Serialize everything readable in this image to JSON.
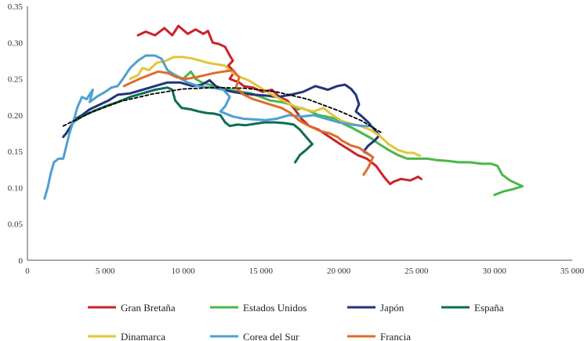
{
  "chart_data": {
    "type": "line",
    "title": "",
    "xlabel": "",
    "ylabel": "",
    "xlim": [
      0,
      35000
    ],
    "ylim": [
      0,
      0.35
    ],
    "x_ticks": [
      0,
      5000,
      10000,
      15000,
      20000,
      25000,
      30000,
      35000
    ],
    "x_tick_labels": [
      "0",
      "5 000",
      "10 000",
      "15 000",
      "20 000",
      "25 000",
      "30 000",
      "35 000"
    ],
    "y_ticks": [
      0,
      0.05,
      0.1,
      0.15,
      0.2,
      0.25,
      0.3,
      0.35
    ],
    "y_tick_labels": [
      "0",
      "0.05",
      "0.10",
      "0.15",
      "0.20",
      "0.25",
      "0.30",
      "0.35"
    ],
    "grid": false,
    "legend_position": "bottom",
    "series": [
      {
        "name": "Gran Bretaña",
        "color": "#cc2229",
        "points": [
          [
            7100,
            0.31
          ],
          [
            7600,
            0.315
          ],
          [
            8200,
            0.31
          ],
          [
            8800,
            0.32
          ],
          [
            9300,
            0.31
          ],
          [
            9700,
            0.323
          ],
          [
            10300,
            0.312
          ],
          [
            10800,
            0.318
          ],
          [
            11300,
            0.312
          ],
          [
            11600,
            0.316
          ],
          [
            11900,
            0.3
          ],
          [
            12300,
            0.298
          ],
          [
            12700,
            0.294
          ],
          [
            13000,
            0.282
          ],
          [
            13200,
            0.275
          ],
          [
            12900,
            0.268
          ],
          [
            13300,
            0.26
          ],
          [
            13000,
            0.25
          ],
          [
            13600,
            0.245
          ],
          [
            13900,
            0.24
          ],
          [
            14500,
            0.238
          ],
          [
            15100,
            0.232
          ],
          [
            15700,
            0.235
          ],
          [
            16200,
            0.225
          ],
          [
            16700,
            0.22
          ],
          [
            17100,
            0.21
          ],
          [
            17600,
            0.195
          ],
          [
            18100,
            0.185
          ],
          [
            18700,
            0.18
          ],
          [
            19400,
            0.17
          ],
          [
            20100,
            0.16
          ],
          [
            20700,
            0.152
          ],
          [
            21200,
            0.145
          ],
          [
            21800,
            0.14
          ],
          [
            22400,
            0.13
          ],
          [
            22900,
            0.115
          ],
          [
            23300,
            0.105
          ],
          [
            23500,
            0.108
          ],
          [
            24000,
            0.112
          ],
          [
            24600,
            0.11
          ],
          [
            25100,
            0.115
          ],
          [
            25300,
            0.112
          ]
        ]
      },
      {
        "name": "Estados Unidos",
        "color": "#4cb648",
        "points": [
          [
            9500,
            0.255
          ],
          [
            10000,
            0.25
          ],
          [
            10500,
            0.26
          ],
          [
            10800,
            0.25
          ],
          [
            11200,
            0.245
          ],
          [
            12000,
            0.24
          ],
          [
            13000,
            0.235
          ],
          [
            13800,
            0.232
          ],
          [
            14400,
            0.23
          ],
          [
            15000,
            0.225
          ],
          [
            15600,
            0.22
          ],
          [
            16300,
            0.218
          ],
          [
            16900,
            0.215
          ],
          [
            17400,
            0.208
          ],
          [
            17600,
            0.21
          ],
          [
            18200,
            0.205
          ],
          [
            18700,
            0.2
          ],
          [
            19200,
            0.198
          ],
          [
            19800,
            0.195
          ],
          [
            20300,
            0.188
          ],
          [
            20900,
            0.182
          ],
          [
            21500,
            0.175
          ],
          [
            22100,
            0.168
          ],
          [
            22600,
            0.16
          ],
          [
            23200,
            0.152
          ],
          [
            23800,
            0.145
          ],
          [
            24400,
            0.14
          ],
          [
            25000,
            0.14
          ],
          [
            25700,
            0.14
          ],
          [
            26300,
            0.138
          ],
          [
            27000,
            0.137
          ],
          [
            27700,
            0.135
          ],
          [
            28400,
            0.135
          ],
          [
            29200,
            0.133
          ],
          [
            29800,
            0.133
          ],
          [
            30200,
            0.13
          ],
          [
            30500,
            0.118
          ],
          [
            31000,
            0.11
          ],
          [
            31500,
            0.105
          ],
          [
            31800,
            0.102
          ],
          [
            31200,
            0.098
          ],
          [
            30600,
            0.095
          ],
          [
            30000,
            0.09
          ]
        ]
      },
      {
        "name": "Japón",
        "color": "#25337a",
        "points": [
          [
            2300,
            0.17
          ],
          [
            2500,
            0.175
          ],
          [
            2800,
            0.185
          ],
          [
            3100,
            0.195
          ],
          [
            3500,
            0.2
          ],
          [
            4000,
            0.208
          ],
          [
            4600,
            0.214
          ],
          [
            5200,
            0.22
          ],
          [
            5800,
            0.228
          ],
          [
            6600,
            0.23
          ],
          [
            7400,
            0.235
          ],
          [
            8200,
            0.24
          ],
          [
            9000,
            0.245
          ],
          [
            9800,
            0.245
          ],
          [
            10600,
            0.24
          ],
          [
            11200,
            0.242
          ],
          [
            11700,
            0.248
          ],
          [
            12100,
            0.24
          ],
          [
            12600,
            0.235
          ],
          [
            13200,
            0.232
          ],
          [
            13800,
            0.23
          ],
          [
            14600,
            0.228
          ],
          [
            15300,
            0.227
          ],
          [
            16100,
            0.225
          ],
          [
            16900,
            0.228
          ],
          [
            17700,
            0.232
          ],
          [
            18500,
            0.24
          ],
          [
            19300,
            0.235
          ],
          [
            19900,
            0.24
          ],
          [
            20400,
            0.242
          ],
          [
            20800,
            0.236
          ],
          [
            21100,
            0.228
          ],
          [
            21300,
            0.215
          ],
          [
            21100,
            0.205
          ],
          [
            21500,
            0.198
          ],
          [
            21900,
            0.19
          ],
          [
            22300,
            0.18
          ],
          [
            22600,
            0.172
          ],
          [
            22300,
            0.165
          ],
          [
            21900,
            0.158
          ],
          [
            21600,
            0.15
          ],
          [
            22000,
            0.145
          ]
        ]
      },
      {
        "name": "España",
        "color": "#0c6e55",
        "points": [
          [
            2900,
            0.19
          ],
          [
            3500,
            0.198
          ],
          [
            4200,
            0.205
          ],
          [
            5000,
            0.212
          ],
          [
            5800,
            0.218
          ],
          [
            6600,
            0.225
          ],
          [
            7400,
            0.23
          ],
          [
            8200,
            0.235
          ],
          [
            9000,
            0.238
          ],
          [
            9300,
            0.235
          ],
          [
            9500,
            0.22
          ],
          [
            9900,
            0.21
          ],
          [
            10500,
            0.208
          ],
          [
            11000,
            0.205
          ],
          [
            11500,
            0.203
          ],
          [
            12000,
            0.202
          ],
          [
            12400,
            0.2
          ],
          [
            12700,
            0.19
          ],
          [
            13000,
            0.185
          ],
          [
            13500,
            0.187
          ],
          [
            14000,
            0.186
          ],
          [
            14600,
            0.188
          ],
          [
            15200,
            0.19
          ],
          [
            15900,
            0.19
          ],
          [
            16500,
            0.189
          ],
          [
            17100,
            0.187
          ],
          [
            17500,
            0.18
          ],
          [
            17900,
            0.17
          ],
          [
            18300,
            0.16
          ],
          [
            17900,
            0.152
          ],
          [
            17500,
            0.145
          ],
          [
            17200,
            0.135
          ]
        ]
      },
      {
        "name": "Dinamarca",
        "color": "#e3c53a",
        "points": [
          [
            6600,
            0.25
          ],
          [
            7100,
            0.255
          ],
          [
            7400,
            0.265
          ],
          [
            7800,
            0.262
          ],
          [
            8300,
            0.272
          ],
          [
            8900,
            0.275
          ],
          [
            9400,
            0.28
          ],
          [
            10000,
            0.28
          ],
          [
            10600,
            0.278
          ],
          [
            11100,
            0.275
          ],
          [
            11600,
            0.272
          ],
          [
            12200,
            0.27
          ],
          [
            12700,
            0.268
          ],
          [
            13200,
            0.258
          ],
          [
            13700,
            0.252
          ],
          [
            14200,
            0.248
          ],
          [
            14800,
            0.24
          ],
          [
            15400,
            0.232
          ],
          [
            16000,
            0.225
          ],
          [
            16600,
            0.218
          ],
          [
            17200,
            0.212
          ],
          [
            17800,
            0.208
          ],
          [
            18400,
            0.205
          ],
          [
            19000,
            0.21
          ],
          [
            19600,
            0.2
          ],
          [
            20200,
            0.192
          ],
          [
            20800,
            0.188
          ],
          [
            21400,
            0.185
          ],
          [
            22000,
            0.18
          ],
          [
            22600,
            0.172
          ],
          [
            23200,
            0.16
          ],
          [
            23800,
            0.152
          ],
          [
            24400,
            0.148
          ],
          [
            24800,
            0.148
          ],
          [
            25200,
            0.144
          ]
        ]
      },
      {
        "name": "Corea del Sur",
        "color": "#4fa0cf",
        "points": [
          [
            1100,
            0.085
          ],
          [
            1300,
            0.1
          ],
          [
            1500,
            0.12
          ],
          [
            1700,
            0.135
          ],
          [
            2000,
            0.14
          ],
          [
            2300,
            0.14
          ],
          [
            2700,
            0.175
          ],
          [
            3000,
            0.195
          ],
          [
            3200,
            0.21
          ],
          [
            3500,
            0.225
          ],
          [
            3800,
            0.222
          ],
          [
            4200,
            0.235
          ],
          [
            4000,
            0.218
          ],
          [
            4500,
            0.226
          ],
          [
            5000,
            0.232
          ],
          [
            5400,
            0.238
          ],
          [
            5800,
            0.24
          ],
          [
            6200,
            0.252
          ],
          [
            6600,
            0.265
          ],
          [
            7100,
            0.275
          ],
          [
            7600,
            0.282
          ],
          [
            8200,
            0.282
          ],
          [
            8600,
            0.278
          ],
          [
            9000,
            0.262
          ],
          [
            9700,
            0.252
          ],
          [
            10300,
            0.245
          ],
          [
            11000,
            0.24
          ],
          [
            11800,
            0.238
          ],
          [
            12600,
            0.235
          ],
          [
            13000,
            0.225
          ],
          [
            12700,
            0.212
          ],
          [
            12400,
            0.205
          ],
          [
            13200,
            0.198
          ],
          [
            13900,
            0.195
          ],
          [
            14600,
            0.194
          ],
          [
            15300,
            0.193
          ],
          [
            16000,
            0.195
          ],
          [
            16800,
            0.2
          ],
          [
            17600,
            0.198
          ],
          [
            18400,
            0.2
          ],
          [
            19200,
            0.195
          ],
          [
            20000,
            0.19
          ],
          [
            20800,
            0.187
          ],
          [
            21600,
            0.185
          ],
          [
            22100,
            0.185
          ]
        ]
      },
      {
        "name": "Francia",
        "color": "#e06b2c",
        "points": [
          [
            6200,
            0.24
          ],
          [
            6700,
            0.245
          ],
          [
            7200,
            0.25
          ],
          [
            7800,
            0.255
          ],
          [
            8400,
            0.26
          ],
          [
            9000,
            0.258
          ],
          [
            9600,
            0.252
          ],
          [
            10200,
            0.25
          ],
          [
            10800,
            0.252
          ],
          [
            11400,
            0.255
          ],
          [
            12000,
            0.258
          ],
          [
            12600,
            0.26
          ],
          [
            13200,
            0.262
          ],
          [
            13600,
            0.252
          ],
          [
            13400,
            0.238
          ],
          [
            13900,
            0.228
          ],
          [
            14500,
            0.222
          ],
          [
            15100,
            0.218
          ],
          [
            15700,
            0.214
          ],
          [
            16300,
            0.21
          ],
          [
            16900,
            0.203
          ],
          [
            17500,
            0.192
          ],
          [
            18100,
            0.185
          ],
          [
            18800,
            0.178
          ],
          [
            19400,
            0.175
          ],
          [
            19900,
            0.17
          ],
          [
            20200,
            0.165
          ],
          [
            20800,
            0.158
          ],
          [
            21300,
            0.155
          ],
          [
            21800,
            0.148
          ],
          [
            22200,
            0.142
          ],
          [
            21900,
            0.128
          ],
          [
            21600,
            0.118
          ]
        ]
      },
      {
        "name": "",
        "color": "#000000",
        "dashed": true,
        "points": [
          [
            2300,
            0.185
          ],
          [
            4000,
            0.203
          ],
          [
            6000,
            0.219
          ],
          [
            8000,
            0.229
          ],
          [
            10000,
            0.236
          ],
          [
            12000,
            0.238
          ],
          [
            14000,
            0.237
          ],
          [
            16000,
            0.232
          ],
          [
            18000,
            0.222
          ],
          [
            20000,
            0.206
          ],
          [
            21500,
            0.192
          ],
          [
            22800,
            0.175
          ]
        ]
      }
    ]
  }
}
